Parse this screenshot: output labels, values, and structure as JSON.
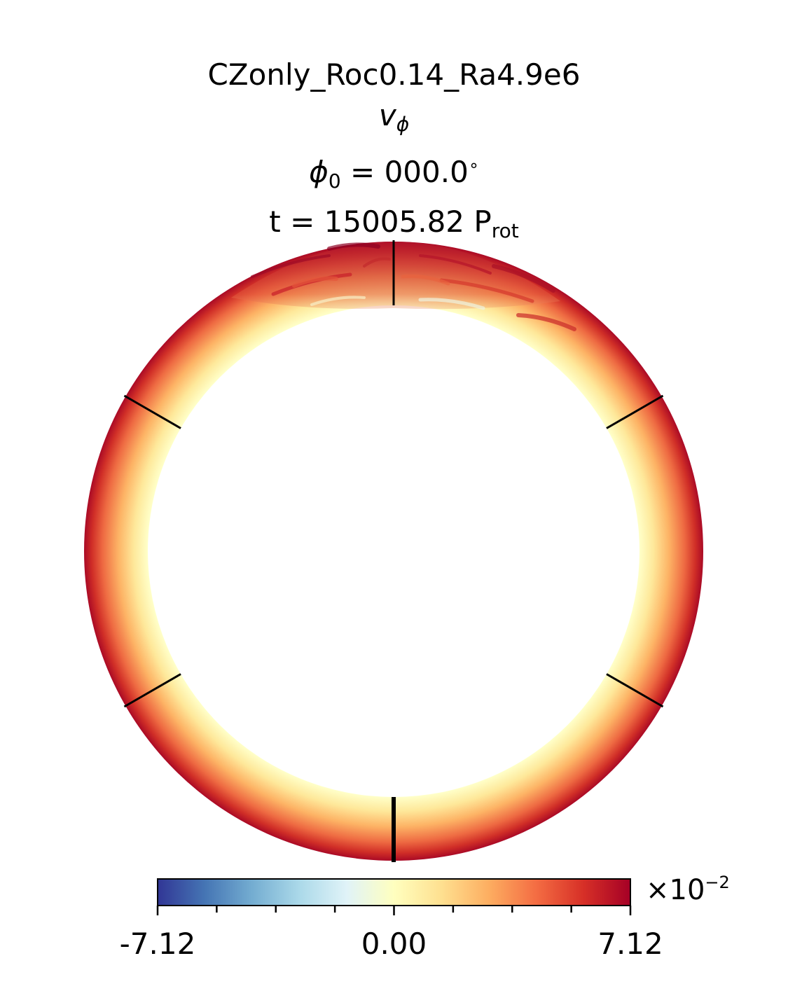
{
  "chart_data": {
    "type": "heatmap",
    "projection": "meridional-slice-annulus",
    "title": "CZonly_Roc0.14_Ra4.9e6",
    "variable": {
      "symbol": "v",
      "subscript": "ϕ"
    },
    "phi0": {
      "symbol": "ϕ",
      "subscript": "0",
      "value": "000.0",
      "unit": "∘"
    },
    "time": {
      "prefix": "t = ",
      "value": "15005.82",
      "unit": "P",
      "unit_subscript": "rot"
    },
    "colormap": "RdYlBu_r",
    "colorbar": {
      "min": -7.12,
      "max": 7.12,
      "tick_labels": [
        "-7.12",
        "0.00",
        "7.12"
      ],
      "minor_ticks": 9,
      "multiplier_base": "×10",
      "multiplier_exponent": "−2"
    },
    "latitude_markers_deg": [
      -90,
      -30,
      30,
      90
    ],
    "colors": {
      "neg_max": "#313695",
      "zero": "#ffffbf",
      "pos_max": "#a50026"
    }
  }
}
